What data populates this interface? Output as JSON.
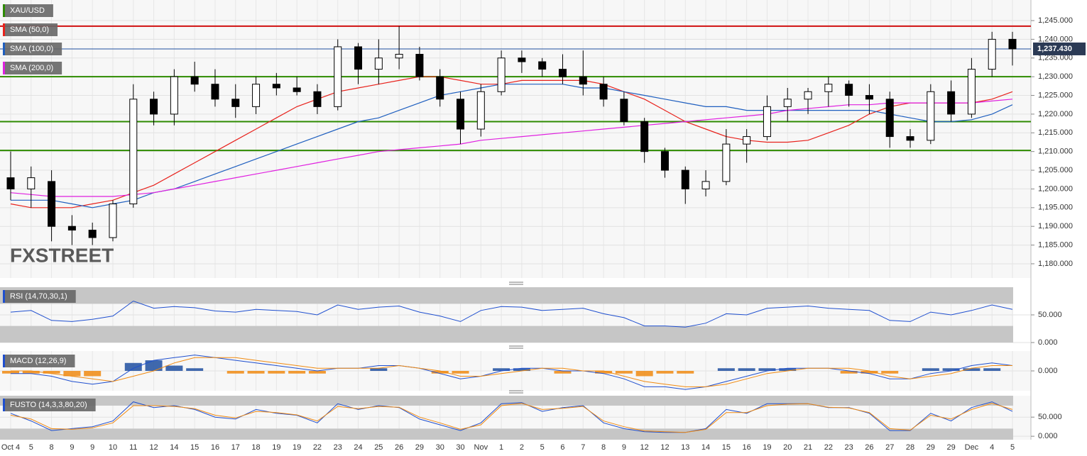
{
  "chart_data": [
    {
      "type": "candlestick",
      "symbol": "XAU/USD",
      "watermark": "FXSTREET",
      "categories": [
        "Oct 4",
        "5",
        "8",
        "9",
        "9",
        "10",
        "11",
        "12",
        "14",
        "15",
        "16",
        "17",
        "18",
        "19",
        "19",
        "22",
        "23",
        "24",
        "25",
        "26",
        "29",
        "30",
        "30",
        "Nov",
        "1",
        "2",
        "5",
        "6",
        "7",
        "8",
        "9",
        "12",
        "12",
        "13",
        "14",
        "15",
        "16",
        "19",
        "20",
        "21",
        "22",
        "23",
        "26",
        "27",
        "28",
        "29",
        "29",
        "Dec",
        "4",
        "5"
      ],
      "open": [
        1203,
        1200,
        1202,
        1190,
        1189,
        1187,
        1196,
        1224,
        1220,
        1230,
        1228,
        1224,
        1222,
        1228,
        1227,
        1226,
        1222,
        1238,
        1232,
        1235,
        1236,
        1230,
        1224,
        1216,
        1226,
        1235,
        1234,
        1232,
        1230,
        1228,
        1224,
        1218,
        1210,
        1205,
        1200,
        1202,
        1212,
        1214,
        1222,
        1224,
        1226,
        1228,
        1225,
        1224,
        1214,
        1213,
        1226,
        1220,
        1232,
        1240
      ],
      "high": [
        1210,
        1206,
        1205,
        1193,
        1191,
        1197,
        1228,
        1226,
        1232,
        1234,
        1232,
        1228,
        1230,
        1231,
        1230,
        1228,
        1240,
        1239,
        1240,
        1243.5,
        1238,
        1232,
        1226,
        1228,
        1237,
        1237,
        1235,
        1236,
        1237,
        1230,
        1226,
        1219,
        1211,
        1206,
        1205,
        1216,
        1216,
        1225,
        1227,
        1227,
        1230,
        1229,
        1228,
        1226,
        1216,
        1228,
        1229,
        1235,
        1242,
        1242
      ],
      "low": [
        1197,
        1195,
        1186,
        1185,
        1185,
        1186,
        1195,
        1217,
        1217,
        1226,
        1222,
        1219,
        1220,
        1225,
        1225,
        1220,
        1221,
        1228,
        1228,
        1232,
        1229,
        1222,
        1212,
        1214,
        1225,
        1231,
        1230,
        1228,
        1225,
        1222,
        1217,
        1207,
        1203,
        1196,
        1198,
        1201,
        1207,
        1213,
        1218,
        1220,
        1222,
        1222,
        1220,
        1211,
        1211,
        1212,
        1218,
        1219,
        1230,
        1233
      ],
      "close": [
        1200,
        1203,
        1190,
        1189,
        1187,
        1196,
        1224,
        1220,
        1230,
        1228,
        1224,
        1222,
        1228,
        1227,
        1226,
        1222,
        1238,
        1232,
        1235,
        1236,
        1230,
        1224,
        1216,
        1226,
        1235,
        1234,
        1232,
        1230,
        1228,
        1224,
        1218,
        1210,
        1205,
        1200,
        1202,
        1212,
        1214,
        1222,
        1224,
        1226,
        1228,
        1225,
        1224,
        1214,
        1213,
        1226,
        1220,
        1232,
        1240,
        1237.43
      ],
      "series": [
        {
          "name": "SMA (50,0)",
          "color": "#e8221c",
          "values": [
            1196,
            1195,
            1195,
            1195,
            1196,
            1197,
            1199,
            1201,
            1204,
            1207,
            1210,
            1213,
            1216,
            1219,
            1222,
            1224,
            1226,
            1227,
            1228,
            1229,
            1230,
            1230,
            1229,
            1228,
            1228,
            1229,
            1229,
            1229,
            1229,
            1228,
            1226,
            1224,
            1221,
            1218,
            1216,
            1214,
            1213,
            1212.5,
            1212.5,
            1213,
            1215,
            1217,
            1220,
            1222,
            1223,
            1223,
            1223,
            1223,
            1224,
            1226
          ]
        },
        {
          "name": "SMA (100,0)",
          "color": "#1f5fbf",
          "values": [
            1197,
            1197,
            1197,
            1196,
            1195,
            1196,
            1197,
            1199,
            1200,
            1202,
            1204,
            1206,
            1208,
            1210,
            1212,
            1214,
            1216,
            1218,
            1219,
            1221,
            1223,
            1225,
            1226,
            1227,
            1228,
            1228,
            1228,
            1228,
            1227,
            1227,
            1226,
            1225,
            1224,
            1223,
            1222,
            1222,
            1221,
            1221,
            1221,
            1221,
            1221,
            1221,
            1221,
            1220,
            1219,
            1218,
            1218,
            1218.5,
            1220,
            1222.5
          ]
        },
        {
          "name": "SMA (200,0)",
          "color": "#e020e0",
          "values": [
            1199,
            1198.5,
            1198,
            1198,
            1198,
            1198,
            1198.5,
            1199,
            1200,
            1201,
            1202,
            1203,
            1204,
            1205,
            1206,
            1207,
            1208,
            1209,
            1210,
            1210.5,
            1211,
            1211.5,
            1212,
            1213,
            1213.5,
            1214,
            1214.5,
            1215,
            1215.5,
            1216,
            1216.5,
            1217,
            1217.5,
            1218,
            1218.5,
            1219,
            1219.5,
            1220,
            1221,
            1221.5,
            1222,
            1222.5,
            1222.5,
            1223,
            1223,
            1223,
            1223,
            1223,
            1223.5,
            1224
          ]
        }
      ],
      "hlines": [
        {
          "value": 1243.5,
          "color": "#d01010"
        },
        {
          "value": 1230,
          "color": "#2e8b00"
        },
        {
          "value": 1218,
          "color": "#2e8b00"
        },
        {
          "value": 1210.3,
          "color": "#2e8b00"
        }
      ],
      "last_price": {
        "value": 1237.43,
        "label": "1,237.430",
        "color": "#1f4f9f"
      },
      "ylim": [
        1176.2,
        1250.5
      ],
      "yticks": [
        {
          "value": 1245,
          "label": "1,245.000"
        },
        {
          "value": 1240,
          "label": "1,240.000"
        },
        {
          "value": 1235,
          "label": "1,235.000"
        },
        {
          "value": 1230,
          "label": "1,230.000"
        },
        {
          "value": 1225,
          "label": "1,225.000"
        },
        {
          "value": 1220,
          "label": "1,220.000"
        },
        {
          "value": 1215,
          "label": "1,215.000"
        },
        {
          "value": 1210,
          "label": "1,210.000"
        },
        {
          "value": 1205,
          "label": "1,205.000"
        },
        {
          "value": 1200,
          "label": "1,200.000"
        },
        {
          "value": 1195,
          "label": "1,195.000"
        },
        {
          "value": 1190,
          "label": "1,190.000"
        },
        {
          "value": 1185,
          "label": "1,185.000"
        },
        {
          "value": 1180,
          "label": "1,180.000"
        }
      ]
    },
    {
      "type": "line",
      "title": "RSI (14,70,30,1)",
      "overbought": 70,
      "oversold": 30,
      "ylim": [
        0,
        100
      ],
      "yticks": [
        {
          "value": 50,
          "label": "50.000"
        },
        {
          "value": 0,
          "label": "0.000"
        }
      ],
      "series": [
        {
          "color": "#1f4fcf",
          "values": [
            55,
            58,
            40,
            38,
            42,
            48,
            75,
            62,
            65,
            63,
            57,
            55,
            60,
            58,
            56,
            50,
            68,
            60,
            64,
            66,
            55,
            48,
            38,
            58,
            65,
            64,
            58,
            60,
            62,
            52,
            45,
            30,
            30,
            28,
            35,
            52,
            50,
            62,
            64,
            66,
            62,
            60,
            58,
            40,
            38,
            55,
            50,
            58,
            68,
            60
          ]
        }
      ]
    },
    {
      "type": "macd",
      "title": "MACD (12,26,9)",
      "ylim": [
        -7.5,
        7.5
      ],
      "yticks": [
        {
          "value": 0,
          "label": "0.000"
        }
      ],
      "macd": {
        "color": "#1f4fcf",
        "values": [
          -1,
          -1,
          -2,
          -4,
          -5,
          -4,
          1,
          4,
          5,
          6,
          5,
          4,
          3,
          2,
          1,
          0,
          1,
          1,
          2,
          2,
          1,
          -1,
          -3,
          -2,
          0,
          1,
          1,
          0,
          0,
          -1,
          -3,
          -6,
          -6,
          -7,
          -6,
          -4,
          -2,
          0,
          1,
          1,
          1,
          0,
          -1,
          -3,
          -3,
          -1,
          0,
          2,
          3,
          2
        ]
      },
      "signal": {
        "color": "#f08a10",
        "values": [
          0,
          0,
          -1,
          -2,
          -3,
          -4,
          -2,
          0,
          3,
          5,
          5,
          5,
          4,
          3,
          2,
          1,
          1,
          1,
          1,
          2,
          1,
          0,
          -2,
          -2,
          -1,
          0,
          1,
          1,
          0,
          0,
          -2,
          -4,
          -5,
          -6,
          -6,
          -5,
          -3,
          -1,
          0,
          1,
          1,
          1,
          0,
          -2,
          -3,
          -2,
          -1,
          1,
          2,
          2
        ]
      },
      "histogram": {
        "up_color": "#1f4fa0",
        "down_color": "#f08a10",
        "values": [
          -1,
          -1,
          -1,
          -2,
          -2,
          0,
          3,
          4,
          2,
          1,
          0,
          -1,
          -1,
          -1,
          -1,
          -1,
          0,
          0,
          1,
          0,
          0,
          -1,
          -1,
          0,
          1,
          1,
          0,
          -1,
          0,
          -1,
          -1,
          -2,
          -1,
          -1,
          0,
          1,
          1,
          1,
          1,
          0,
          0,
          -1,
          -1,
          -1,
          0,
          1,
          1,
          1,
          1,
          0
        ]
      }
    },
    {
      "type": "line",
      "title": "FUSTO (14,3,3,80,20)",
      "overbought": 80,
      "oversold": 20,
      "ylim": [
        -9,
        106
      ],
      "yticks": [
        {
          "value": 50,
          "label": "50.000"
        },
        {
          "value": 0,
          "label": "0.000"
        }
      ],
      "series": [
        {
          "color": "#1f4fcf",
          "values": [
            60,
            40,
            15,
            20,
            25,
            40,
            90,
            75,
            80,
            70,
            50,
            45,
            70,
            60,
            55,
            35,
            85,
            70,
            80,
            75,
            45,
            30,
            15,
            35,
            85,
            88,
            65,
            75,
            80,
            35,
            20,
            12,
            10,
            10,
            20,
            70,
            60,
            85,
            85,
            85,
            75,
            75,
            60,
            15,
            15,
            60,
            40,
            75,
            90,
            65
          ]
        },
        {
          "color": "#f08a10",
          "values": [
            55,
            45,
            20,
            18,
            22,
            35,
            80,
            80,
            78,
            72,
            55,
            48,
            65,
            62,
            56,
            40,
            78,
            72,
            78,
            76,
            50,
            35,
            18,
            30,
            80,
            86,
            70,
            73,
            78,
            40,
            25,
            14,
            12,
            10,
            18,
            62,
            62,
            80,
            84,
            85,
            76,
            74,
            62,
            20,
            16,
            55,
            45,
            70,
            86,
            70
          ]
        }
      ]
    }
  ]
}
